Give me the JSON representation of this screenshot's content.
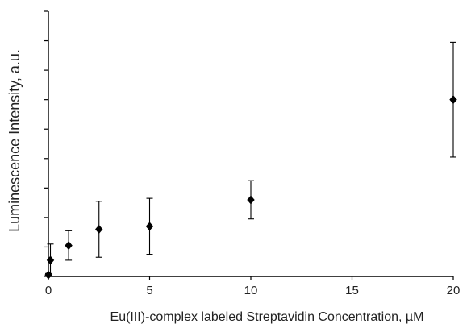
{
  "chart_data": {
    "type": "scatter",
    "title": "",
    "xlabel": "Eu(III)-complex labeled Streptavidin Concentration, µM",
    "ylabel": "Luminescence Intensity, a.u.",
    "xlim": [
      0,
      20
    ],
    "ylim": [
      0,
      9
    ],
    "x_ticks": [
      0,
      5,
      10,
      15,
      20
    ],
    "x_tick_labels": [
      "0",
      "5",
      "10",
      "15",
      "20"
    ],
    "y_tick_labels_visible": false,
    "grid": false,
    "legend": "none",
    "marker": "diamond",
    "color": "#000000",
    "series": [
      {
        "x": [
          0,
          0.1,
          1,
          2.5,
          5,
          10,
          20
        ],
        "y": [
          0.05,
          0.55,
          1.05,
          1.6,
          1.7,
          2.6,
          6.0
        ],
        "error": [
          0.05,
          0.55,
          0.5,
          0.95,
          0.95,
          0.65,
          1.95
        ]
      }
    ]
  }
}
